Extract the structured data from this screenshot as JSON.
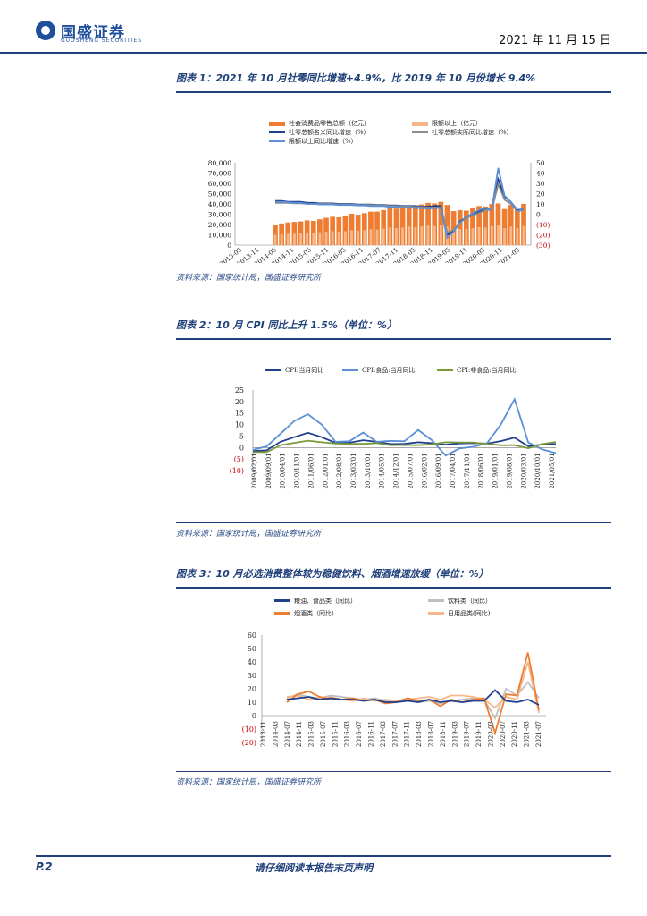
{
  "header": {
    "company_name": "国盛证券",
    "company_sub": "GUOSHENG SECURITIES",
    "date": "2021 年 11 月 15 日"
  },
  "figures": [
    {
      "title": "图表 1：2021 年 10 月社零同比增速+4.9%，比 2019 年 10 月份增长 9.4%",
      "source": "资料来源：国家统计局，国盛证券研究所"
    },
    {
      "title": "图表 2：10 月 CPI 同比上升 1.5%（单位：%）",
      "source": "资料来源：国家统计局，国盛证券研究所"
    },
    {
      "title": "图表 3：10 月必选消费整体较为稳健饮料、烟酒增速放缓（单位：%）",
      "source": "资料来源：国家统计局，国盛证券研究所"
    }
  ],
  "footer": {
    "page": "P.2",
    "note": "请仔细阅读本报告末页声明"
  },
  "chart_data": [
    {
      "type": "bar",
      "title": "图表 1：2021 年 10 月社零同比增速+4.9%，比 2019 年 10 月份增长 9.4%",
      "legend": [
        "社会消费品零售总额（亿元）",
        "限额以上（亿元）",
        "社零总额名义同比增速（%）",
        "社零总额实际同比增速（%）",
        "限额以上同比增速（%）"
      ],
      "colors": {
        "total": "#ee7d31",
        "above": "#f6b88a",
        "nominal": "#1f3f8f",
        "real": "#8c8c8c",
        "above_yoy": "#5b8fd6"
      },
      "left_axis": {
        "ticks": [
          "80,000",
          "70,000",
          "60,000",
          "50,000",
          "40,000",
          "30,000",
          "20,000",
          "10,000",
          "0"
        ],
        "range": [
          0,
          80000
        ]
      },
      "right_axis": {
        "ticks": [
          "50",
          "40",
          "30",
          "20",
          "10",
          "0",
          "(10)",
          "(20)",
          "(30)"
        ],
        "range": [
          -30,
          50
        ]
      },
      "x_ticks": [
        "2013-05",
        "2013-11",
        "2014-05",
        "2014-11",
        "2015-05",
        "2015-11",
        "2016-05",
        "2016-11",
        "2017-07",
        "2017-11",
        "2018-05",
        "2018-11",
        "2019-05",
        "2019-11",
        "2020-05",
        "2020-11",
        "2021-05"
      ],
      "series": [
        {
          "name": "社会消费品零售总额（亿元）",
          "kind": "bar",
          "values": [
            20000,
            21000,
            22000,
            22500,
            23000,
            24000,
            23500,
            25000,
            26500,
            27500,
            27000,
            28000,
            30500,
            29500,
            31000,
            32500,
            32500,
            34000,
            36000,
            35500,
            37000,
            38500,
            38000,
            39500,
            41000,
            40500,
            42000,
            39000,
            33000,
            34000,
            33500,
            36000,
            38000,
            37500,
            40000,
            40500,
            35000,
            39000,
            35000,
            40000
          ]
        },
        {
          "name": "限额以上（亿元）",
          "kind": "bar",
          "values": [
            10000,
            10500,
            11000,
            11000,
            11500,
            12000,
            11500,
            12500,
            13000,
            13500,
            13000,
            13500,
            14500,
            14000,
            14500,
            15500,
            15000,
            16000,
            17000,
            16500,
            17000,
            18000,
            17500,
            18000,
            19000,
            18500,
            19500,
            18000,
            15000,
            15500,
            15500,
            16500,
            17500,
            17000,
            18500,
            19000,
            16500,
            18000,
            16500,
            18500
          ]
        },
        {
          "name": "社零总额名义同比增速（%）",
          "kind": "line",
          "values": [
            13,
            13,
            12,
            12,
            12,
            11,
            11,
            10.5,
            10.5,
            10.5,
            10,
            10,
            10,
            9.5,
            9.5,
            9.5,
            9,
            9,
            8.5,
            8.5,
            8,
            8,
            8,
            7.5,
            7.5,
            8,
            8,
            -20,
            -16,
            -7,
            -3,
            0,
            3,
            5,
            4.6,
            34,
            17,
            12,
            4,
            4.9
          ]
        },
        {
          "name": "社零总额实际同比增速（%）",
          "kind": "line",
          "values": [
            11,
            11,
            11,
            10.5,
            10.5,
            10,
            10,
            10,
            10,
            10,
            9.5,
            9.5,
            9.5,
            9,
            9,
            9,
            8.5,
            8.5,
            8,
            8,
            7.5,
            7.5,
            7,
            7,
            6.5,
            6.5,
            6.5,
            -18,
            -15,
            -8,
            -4,
            -1,
            1,
            4,
            4,
            29,
            14,
            10,
            3,
            4
          ]
        },
        {
          "name": "限额以上同比增速（%）",
          "kind": "line",
          "values": [
            12,
            12,
            11.5,
            11,
            11,
            10,
            10,
            9.5,
            9.5,
            9.5,
            9,
            9,
            9,
            8.5,
            8.5,
            8,
            8,
            8,
            7,
            7,
            6.5,
            6.5,
            6,
            6,
            5.5,
            6,
            6,
            -23,
            -17,
            -8,
            -3,
            1,
            4,
            6,
            5,
            45,
            18,
            12,
            3,
            5
          ]
        }
      ]
    },
    {
      "type": "line",
      "title": "图表 2：10 月 CPI 同比上升 1.5%（单位：%）",
      "legend": [
        "CPI:当月同比",
        "CPI:食品:当月同比",
        "CPI:非食品:当月同比"
      ],
      "colors": {
        "cpi": "#1f3f8f",
        "food": "#5b8fd6",
        "nonfood": "#7a9a3a"
      },
      "y_axis": {
        "ticks": [
          "25",
          "20",
          "15",
          "10",
          "5",
          "0",
          "(5)",
          "(10)"
        ],
        "range": [
          -10,
          25
        ]
      },
      "x_ticks": [
        "2009/02/01",
        "2009/09/01",
        "2010/04/01",
        "2010/11/01",
        "2011/06/01",
        "2012/01/01",
        "2012/08/01",
        "2013/03/01",
        "2013/10/01",
        "2014/05/01",
        "2014/12/01",
        "2015/07/01",
        "2016/02/01",
        "2016/09/01",
        "2017/04/01",
        "2017/11/01",
        "2018/06/01",
        "2019/01/01",
        "2019/08/01",
        "2020/03/01",
        "2020/10/01",
        "2021/05/01"
      ],
      "series": [
        {
          "name": "CPI:当月同比",
          "values": [
            -1.5,
            -1.2,
            2.5,
            4.5,
            6.4,
            4.5,
            2.0,
            2.1,
            3.2,
            2.5,
            1.5,
            1.6,
            2.3,
            1.9,
            1.2,
            1.8,
            1.9,
            1.7,
            2.8,
            4.3,
            0.5,
            1.3,
            1.5
          ]
        },
        {
          "name": "CPI:食品:当月同比",
          "values": [
            -1,
            0.5,
            6,
            11.5,
            14.5,
            10,
            2.5,
            2.7,
            6.5,
            2.5,
            2.9,
            2.7,
            7.6,
            3.2,
            -3.5,
            -0.4,
            0.3,
            1.9,
            10,
            21,
            2.2,
            -0.8,
            -2.4
          ]
        },
        {
          "name": "CPI:非食品:当月同比",
          "values": [
            -2,
            -2,
            1,
            2,
            3.0,
            2.3,
            1.7,
            1.6,
            1.6,
            1.9,
            1.0,
            1.1,
            1.0,
            1.4,
            2.3,
            2.2,
            2.2,
            1.5,
            1.0,
            1.0,
            -0.3,
            1.5,
            2.4
          ]
        }
      ]
    },
    {
      "type": "line",
      "title": "图表 3：10 月必选消费整体较为稳健饮料、烟酒增速放缓（单位：%）",
      "legend": [
        "粮油、食品类（同比）",
        "饮料类（同比）",
        "烟酒类（同比）",
        "日用品类(同比)"
      ],
      "colors": {
        "grain": "#1f3f8f",
        "drink": "#bfbfbf",
        "tobacco": "#ee7d31",
        "daily": "#f6b88a"
      },
      "y_axis": {
        "ticks": [
          "60",
          "50",
          "40",
          "30",
          "20",
          "10",
          "0",
          "(10)",
          "(20)"
        ],
        "range": [
          -20,
          60
        ]
      },
      "x_ticks": [
        "2013-11",
        "2014-03",
        "2014-07",
        "2014-11",
        "2015-03",
        "2015-07",
        "2015-11",
        "2016-03",
        "2016-07",
        "2016-11",
        "2017-03",
        "2017-07",
        "2017-11",
        "2018-03",
        "2018-07",
        "2018-11",
        "2019-03",
        "2019-07",
        "2019-11",
        "2020-03",
        "2020-07",
        "2020-11",
        "2021-03",
        "2021-07"
      ],
      "series": [
        {
          "name": "粮油、食品类（同比）",
          "values": [
            12,
            13,
            14,
            12,
            13,
            12,
            12,
            11,
            12,
            10,
            10,
            11,
            10,
            12,
            10,
            11,
            10,
            11,
            11,
            19,
            11,
            10,
            12,
            8
          ]
        },
        {
          "name": "饮料类（同比）",
          "values": [
            13,
            16,
            14,
            13,
            15,
            14,
            13,
            12,
            13,
            11,
            11,
            12,
            10,
            11,
            9,
            11,
            12,
            13,
            12,
            -2,
            20,
            15,
            25,
            13
          ]
        },
        {
          "name": "烟酒类（同比）",
          "values": [
            10,
            16,
            18,
            14,
            12,
            12,
            13,
            11,
            12,
            9,
            10,
            13,
            11,
            12,
            7,
            12,
            10,
            12,
            13,
            -13,
            16,
            15,
            47,
            4
          ]
        },
        {
          "name": "日用品类(同比)",
          "values": [
            14,
            15,
            12,
            13,
            14,
            12,
            11,
            13,
            11,
            12,
            11,
            12,
            13,
            14,
            12,
            15,
            15,
            14,
            12,
            6,
            14,
            12,
            40,
            2
          ]
        }
      ]
    }
  ]
}
